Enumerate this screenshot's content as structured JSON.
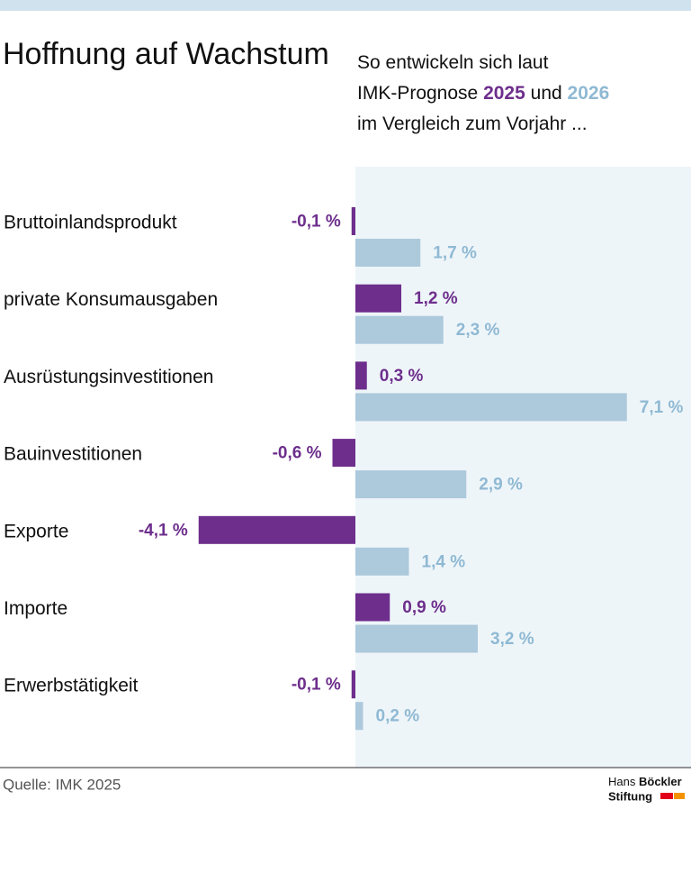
{
  "chart_data": {
    "type": "hbar",
    "title": "Hoffnung auf Wachstum",
    "subtitle_parts": [
      "So entwickeln sich laut",
      "IMK-Prognose",
      "und",
      "im Vergleich zum Vorjahr ..."
    ],
    "categories": [
      "Bruttoinlandsprodukt",
      "private Konsumausgaben",
      "Ausrüstungsinvestitionen",
      "Bauinvestitionen",
      "Exporte",
      "Importe",
      "Erwerbstätigkeit"
    ],
    "series": [
      {
        "name": "2025",
        "color": "#6d2e8c",
        "label_color": "#6d2e8c",
        "values": [
          -0.1,
          1.2,
          0.3,
          -0.6,
          -4.1,
          0.9,
          -0.1
        ],
        "value_labels": [
          "-0,1 %",
          "1,2 %",
          "0,3 %",
          "-0,6 %",
          "-4,1 %",
          "0,9 %",
          "-0,1 %"
        ]
      },
      {
        "name": "2026",
        "color": "#adc9dc",
        "label_color": "#8fb9d3",
        "values": [
          1.7,
          2.3,
          7.1,
          2.9,
          1.4,
          3.2,
          0.2
        ],
        "value_labels": [
          "1,7 %",
          "2,3 %",
          "7,1 %",
          "2,9 %",
          "1,4 %",
          "3,2 %",
          "0,2 %"
        ]
      }
    ],
    "source": "Quelle: IMK 2025",
    "logo": [
      "Hans",
      "Böckler",
      "Stiftung"
    ]
  }
}
